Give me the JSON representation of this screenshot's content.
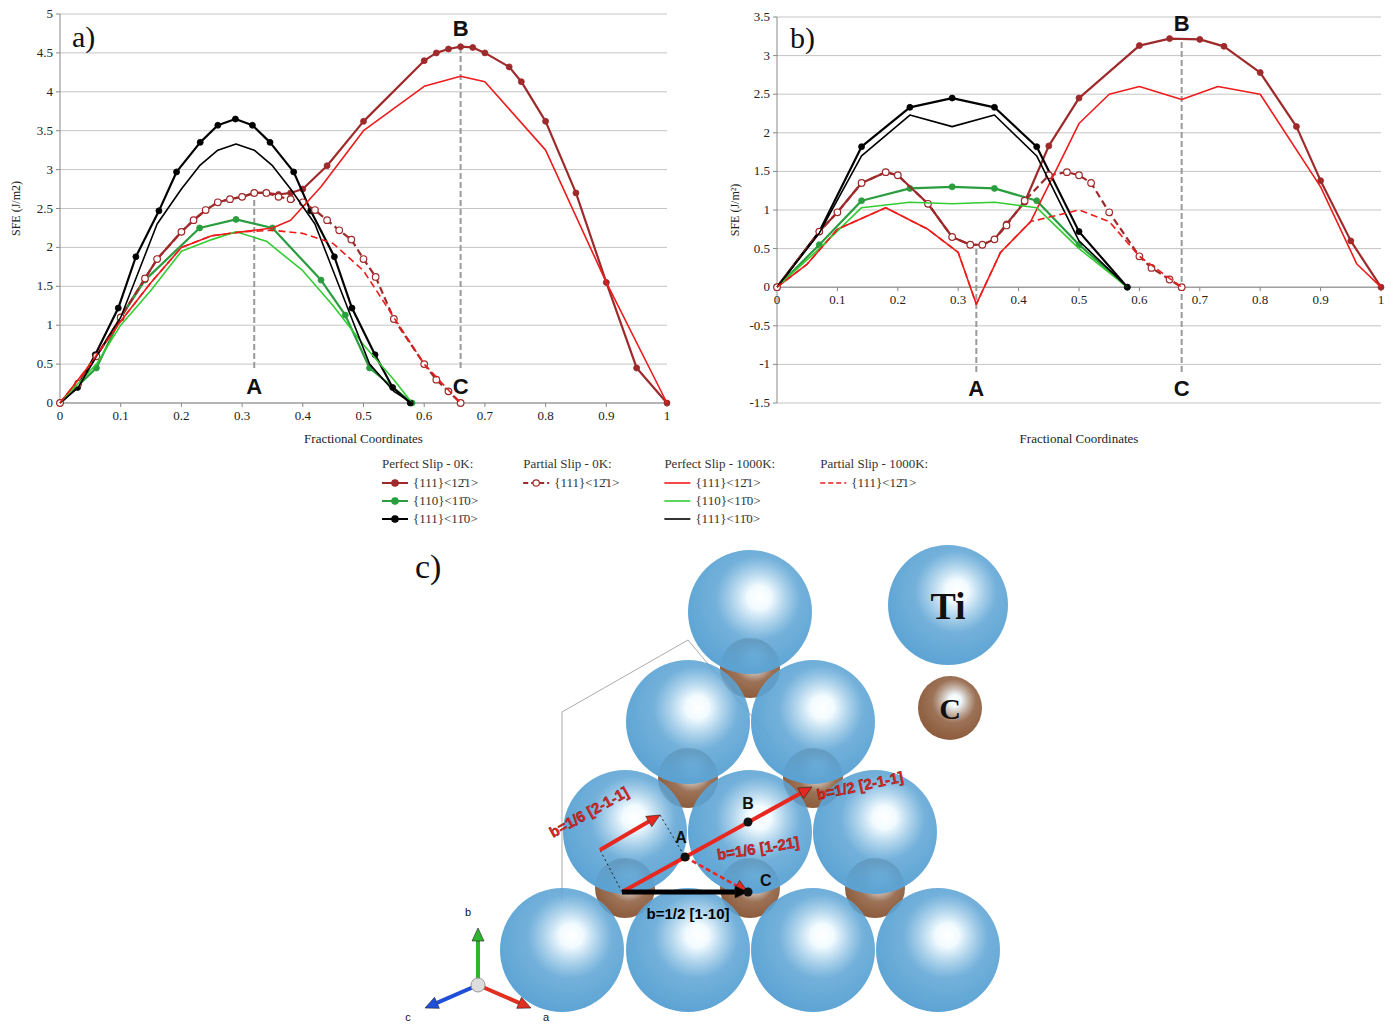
{
  "chart_data": [
    {
      "type": "line",
      "panel_label": "a)",
      "x_label": "Fractional Coordinates",
      "y_label": "SFE (J/m2)",
      "xlim": [
        0,
        1
      ],
      "ylim": [
        0,
        5
      ],
      "xticks": [
        0,
        0.1,
        0.2,
        0.3,
        0.4,
        0.5,
        0.6,
        0.7,
        0.8,
        0.9,
        1
      ],
      "yticks": [
        0,
        0.5,
        1,
        1.5,
        2,
        2.5,
        3,
        3.5,
        4,
        4.5,
        5
      ],
      "grid": true,
      "annotations": [
        {
          "text": "A",
          "x": 0.32,
          "y": 0.22,
          "line": [
            0.45,
            2.7
          ]
        },
        {
          "text": "B",
          "x": 0.66,
          "y": 4.82
        },
        {
          "text": "C",
          "x": 0.66,
          "y": 0.22,
          "line": [
            0.45,
            4.58
          ]
        }
      ],
      "series": [
        {
          "name": "{111}<12̄1>",
          "group": "Perfect Slip - 0K:",
          "color": "#9e2a2b",
          "marker": "circle",
          "line_style": "solid",
          "x": [
            0,
            0.03,
            0.06,
            0.1,
            0.14,
            0.16,
            0.2,
            0.22,
            0.24,
            0.26,
            0.28,
            0.3,
            0.32,
            0.34,
            0.36,
            0.38,
            0.4,
            0.44,
            0.5,
            0.6,
            0.62,
            0.64,
            0.66,
            0.68,
            0.7,
            0.74,
            0.76,
            0.8,
            0.85,
            0.9,
            0.95,
            1
          ],
          "values": [
            0,
            0.25,
            0.6,
            1.1,
            1.6,
            1.85,
            2.2,
            2.35,
            2.48,
            2.58,
            2.62,
            2.65,
            2.7,
            2.7,
            2.68,
            2.7,
            2.75,
            3.05,
            3.62,
            4.4,
            4.5,
            4.55,
            4.58,
            4.57,
            4.5,
            4.32,
            4.13,
            3.62,
            2.7,
            1.55,
            0.45,
            0
          ]
        },
        {
          "name": "{110}<11̄0>",
          "group": "Perfect Slip - 0K:",
          "color": "#2a9d3f",
          "marker": "circle",
          "line_style": "solid",
          "x": [
            0,
            0.06,
            0.1,
            0.14,
            0.23,
            0.29,
            0.35,
            0.43,
            0.47,
            0.51,
            0.58
          ],
          "values": [
            0,
            0.45,
            1.1,
            1.58,
            2.25,
            2.36,
            2.25,
            1.58,
            1.13,
            0.45,
            0
          ]
        },
        {
          "name": "{111}<11̄0>",
          "group": "Perfect Slip - 0K:",
          "color": "#000000",
          "marker": "circle",
          "line_style": "solid",
          "x": [
            0,
            0.029,
            0.058,
            0.096,
            0.125,
            0.163,
            0.192,
            0.231,
            0.26,
            0.289,
            0.317,
            0.346,
            0.385,
            0.413,
            0.452,
            0.481,
            0.519,
            0.548,
            0.577
          ],
          "values": [
            0,
            0.2,
            0.62,
            1.22,
            1.88,
            2.47,
            2.97,
            3.35,
            3.57,
            3.65,
            3.57,
            3.35,
            2.97,
            2.47,
            1.88,
            1.22,
            0.62,
            0.2,
            0
          ]
        },
        {
          "name": "{111}<12̄1>",
          "group": "Partial Slip - 0K:",
          "color": "#9e2a2b",
          "marker": "open-circle",
          "line_style": "dashed",
          "x": [
            0,
            0.03,
            0.06,
            0.1,
            0.14,
            0.16,
            0.2,
            0.22,
            0.24,
            0.26,
            0.28,
            0.3,
            0.32,
            0.34,
            0.36,
            0.38,
            0.4,
            0.42,
            0.44,
            0.46,
            0.48,
            0.5,
            0.52,
            0.55,
            0.6,
            0.62,
            0.64,
            0.66
          ],
          "values": [
            0,
            0.25,
            0.6,
            1.1,
            1.6,
            1.85,
            2.2,
            2.35,
            2.48,
            2.58,
            2.62,
            2.65,
            2.7,
            2.7,
            2.65,
            2.62,
            2.58,
            2.48,
            2.35,
            2.22,
            2.1,
            1.85,
            1.62,
            1.08,
            0.5,
            0.3,
            0.15,
            0
          ]
        },
        {
          "name": "{111}<12̄1>",
          "group": "Perfect Slip - 1000K:",
          "color": "#ee1c1c",
          "marker": "none",
          "line_style": "solid",
          "x": [
            0,
            0.05,
            0.1,
            0.15,
            0.2,
            0.25,
            0.3,
            0.35,
            0.38,
            0.43,
            0.5,
            0.6,
            0.66,
            0.7,
            0.8,
            0.9,
            1
          ],
          "values": [
            0,
            0.5,
            1.05,
            1.55,
            2.0,
            2.15,
            2.2,
            2.25,
            2.35,
            2.78,
            3.5,
            4.07,
            4.2,
            4.13,
            3.25,
            1.55,
            0
          ]
        },
        {
          "name": "{110}<11̄0>",
          "group": "Perfect Slip - 1000K:",
          "color": "#33cc33",
          "marker": "none",
          "line_style": "solid",
          "x": [
            0,
            0.06,
            0.1,
            0.15,
            0.2,
            0.25,
            0.29,
            0.34,
            0.4,
            0.45,
            0.5,
            0.55,
            0.58
          ],
          "values": [
            0,
            0.5,
            1.0,
            1.45,
            1.95,
            2.1,
            2.2,
            2.08,
            1.7,
            1.25,
            0.75,
            0.3,
            0
          ]
        },
        {
          "name": "{111}<11̄0>",
          "group": "Perfect Slip - 1000K:",
          "color": "#000000",
          "marker": "none",
          "line_style": "solid",
          "x": [
            0,
            0.03,
            0.06,
            0.1,
            0.13,
            0.16,
            0.2,
            0.23,
            0.26,
            0.29,
            0.32,
            0.35,
            0.38,
            0.42,
            0.45,
            0.48,
            0.51,
            0.55,
            0.58
          ],
          "values": [
            0,
            0.2,
            0.6,
            1.1,
            1.7,
            2.3,
            2.75,
            3.05,
            3.25,
            3.33,
            3.25,
            3.05,
            2.75,
            2.3,
            1.7,
            1.1,
            0.5,
            0.15,
            0
          ]
        },
        {
          "name": "{111}<12̄1>",
          "group": "Partial Slip - 1000K:",
          "color": "#ee1c1c",
          "marker": "none",
          "line_style": "dashed",
          "x": [
            0,
            0.05,
            0.1,
            0.15,
            0.2,
            0.25,
            0.3,
            0.35,
            0.4,
            0.45,
            0.5,
            0.55,
            0.6,
            0.66
          ],
          "values": [
            0,
            0.5,
            1.05,
            1.55,
            2.0,
            2.15,
            2.2,
            2.22,
            2.18,
            2.05,
            1.7,
            1.1,
            0.5,
            0
          ]
        }
      ]
    },
    {
      "type": "line",
      "panel_label": "b)",
      "x_label": "Fractional Coordinates",
      "y_label": "SFE (J/m²)",
      "xlim": [
        0,
        1
      ],
      "ylim": [
        -1.5,
        3.5
      ],
      "xticks": [
        0,
        0.1,
        0.2,
        0.3,
        0.4,
        0.5,
        0.6,
        0.7,
        0.8,
        0.9,
        1
      ],
      "yticks": [
        -1.5,
        -1,
        -0.5,
        0,
        0.5,
        1,
        1.5,
        2,
        2.5,
        3,
        3.5
      ],
      "grid": true,
      "annotations": [
        {
          "text": "A",
          "x": 0.33,
          "y": -1.3,
          "line": [
            -1.1,
            0.53
          ]
        },
        {
          "text": "B",
          "x": 0.67,
          "y": 3.42
        },
        {
          "text": "C",
          "x": 0.67,
          "y": -1.3,
          "line": [
            -1.1,
            3.22
          ]
        }
      ],
      "series": [
        {
          "name": "{111}<12̄1>",
          "group": "Perfect Slip - 0K:",
          "color": "#9e2a2b",
          "marker": "circle",
          "line_style": "solid",
          "x": [
            0,
            0.07,
            0.1,
            0.14,
            0.18,
            0.2,
            0.25,
            0.29,
            0.32,
            0.34,
            0.36,
            0.38,
            0.41,
            0.45,
            0.5,
            0.6,
            0.65,
            0.7,
            0.74,
            0.8,
            0.86,
            0.9,
            0.95,
            1
          ],
          "values": [
            0,
            0.72,
            0.97,
            1.35,
            1.49,
            1.45,
            1.08,
            0.65,
            0.55,
            0.55,
            0.62,
            0.82,
            1.1,
            1.83,
            2.45,
            3.13,
            3.22,
            3.21,
            3.12,
            2.78,
            2.08,
            1.38,
            0.6,
            0
          ]
        },
        {
          "name": "{110}<11̄0>",
          "group": "Perfect Slip - 0K:",
          "color": "#2a9d3f",
          "marker": "circle",
          "line_style": "solid",
          "x": [
            0,
            0.07,
            0.14,
            0.22,
            0.29,
            0.36,
            0.43,
            0.5,
            0.58
          ],
          "values": [
            0,
            0.55,
            1.12,
            1.28,
            1.3,
            1.28,
            1.12,
            0.55,
            0
          ]
        },
        {
          "name": "{111}<11̄0>",
          "group": "Perfect Slip - 0K:",
          "color": "#000000",
          "marker": "circle",
          "line_style": "solid",
          "x": [
            0,
            0.07,
            0.14,
            0.22,
            0.29,
            0.36,
            0.43,
            0.5,
            0.58
          ],
          "values": [
            0,
            0.72,
            1.82,
            2.33,
            2.45,
            2.33,
            1.82,
            0.72,
            0
          ]
        },
        {
          "name": "{111}<12̄1>",
          "group": "Partial Slip - 0K:",
          "color": "#9e2a2b",
          "marker": "open-circle",
          "line_style": "dashed",
          "x": [
            0,
            0.07,
            0.1,
            0.14,
            0.18,
            0.2,
            0.25,
            0.29,
            0.32,
            0.34,
            0.36,
            0.38,
            0.41,
            0.45,
            0.48,
            0.5,
            0.52,
            0.55,
            0.6,
            0.62,
            0.65,
            0.67
          ],
          "values": [
            0,
            0.72,
            0.97,
            1.35,
            1.49,
            1.45,
            1.08,
            0.65,
            0.55,
            0.55,
            0.62,
            0.8,
            1.12,
            1.45,
            1.49,
            1.45,
            1.35,
            0.97,
            0.4,
            0.25,
            0.1,
            0
          ]
        },
        {
          "name": "{111}<12̄1>",
          "group": "Perfect Slip - 1000K:",
          "color": "#ee1c1c",
          "marker": "none",
          "line_style": "solid",
          "x": [
            0,
            0.05,
            0.1,
            0.18,
            0.25,
            0.3,
            0.33,
            0.37,
            0.42,
            0.5,
            0.55,
            0.6,
            0.67,
            0.73,
            0.8,
            0.9,
            0.96,
            1
          ],
          "values": [
            0,
            0.3,
            0.75,
            1.03,
            0.75,
            0.45,
            -0.22,
            0.45,
            0.85,
            2.12,
            2.5,
            2.6,
            2.43,
            2.6,
            2.5,
            1.3,
            0.3,
            0
          ]
        },
        {
          "name": "{110}<11̄0>",
          "group": "Perfect Slip - 1000K:",
          "color": "#33cc33",
          "marker": "none",
          "line_style": "solid",
          "x": [
            0,
            0.07,
            0.14,
            0.22,
            0.29,
            0.36,
            0.43,
            0.5,
            0.58
          ],
          "values": [
            0,
            0.5,
            1.03,
            1.1,
            1.08,
            1.1,
            1.03,
            0.5,
            0
          ]
        },
        {
          "name": "{111}<11̄0>",
          "group": "Perfect Slip - 1000K:",
          "color": "#000000",
          "marker": "none",
          "line_style": "solid",
          "x": [
            0,
            0.07,
            0.14,
            0.22,
            0.29,
            0.36,
            0.43,
            0.5,
            0.58
          ],
          "values": [
            0,
            0.7,
            1.7,
            2.23,
            2.08,
            2.23,
            1.7,
            0.6,
            0
          ]
        },
        {
          "name": "{111}<12̄1>",
          "group": "Partial Slip - 1000K:",
          "color": "#ee1c1c",
          "marker": "none",
          "line_style": "dashed",
          "x": [
            0,
            0.05,
            0.1,
            0.18,
            0.25,
            0.3,
            0.33,
            0.37,
            0.42,
            0.5,
            0.55,
            0.6,
            0.67
          ],
          "values": [
            0,
            0.3,
            0.75,
            1.03,
            0.75,
            0.45,
            -0.22,
            0.45,
            0.85,
            1.0,
            0.85,
            0.4,
            0
          ]
        }
      ]
    }
  ],
  "diagram": {
    "panel_label": "c)",
    "species": [
      {
        "symbol": "Ti",
        "color": "#5ba3d4"
      },
      {
        "symbol": "C",
        "color": "#8b5a3a"
      }
    ],
    "vectors": [
      {
        "label": "b=1/6 [2-1-1]",
        "color": "#e8271f",
        "line_style": "solid"
      },
      {
        "label": "b=1/2 [2-1-1]",
        "color": "#e8271f",
        "line_style": "solid"
      },
      {
        "label": "b=1/6 [1-21]",
        "color": "#e8271f",
        "line_style": "dashed"
      },
      {
        "label": "b=1/2 [1-10]",
        "color": "#000000",
        "line_style": "solid"
      }
    ],
    "points": [
      "A",
      "B",
      "C"
    ],
    "axes": [
      {
        "label": "b",
        "color": "#2db52d"
      },
      {
        "label": "c",
        "color": "#1f4fd8"
      },
      {
        "label": "a",
        "color": "#e03020"
      }
    ]
  }
}
